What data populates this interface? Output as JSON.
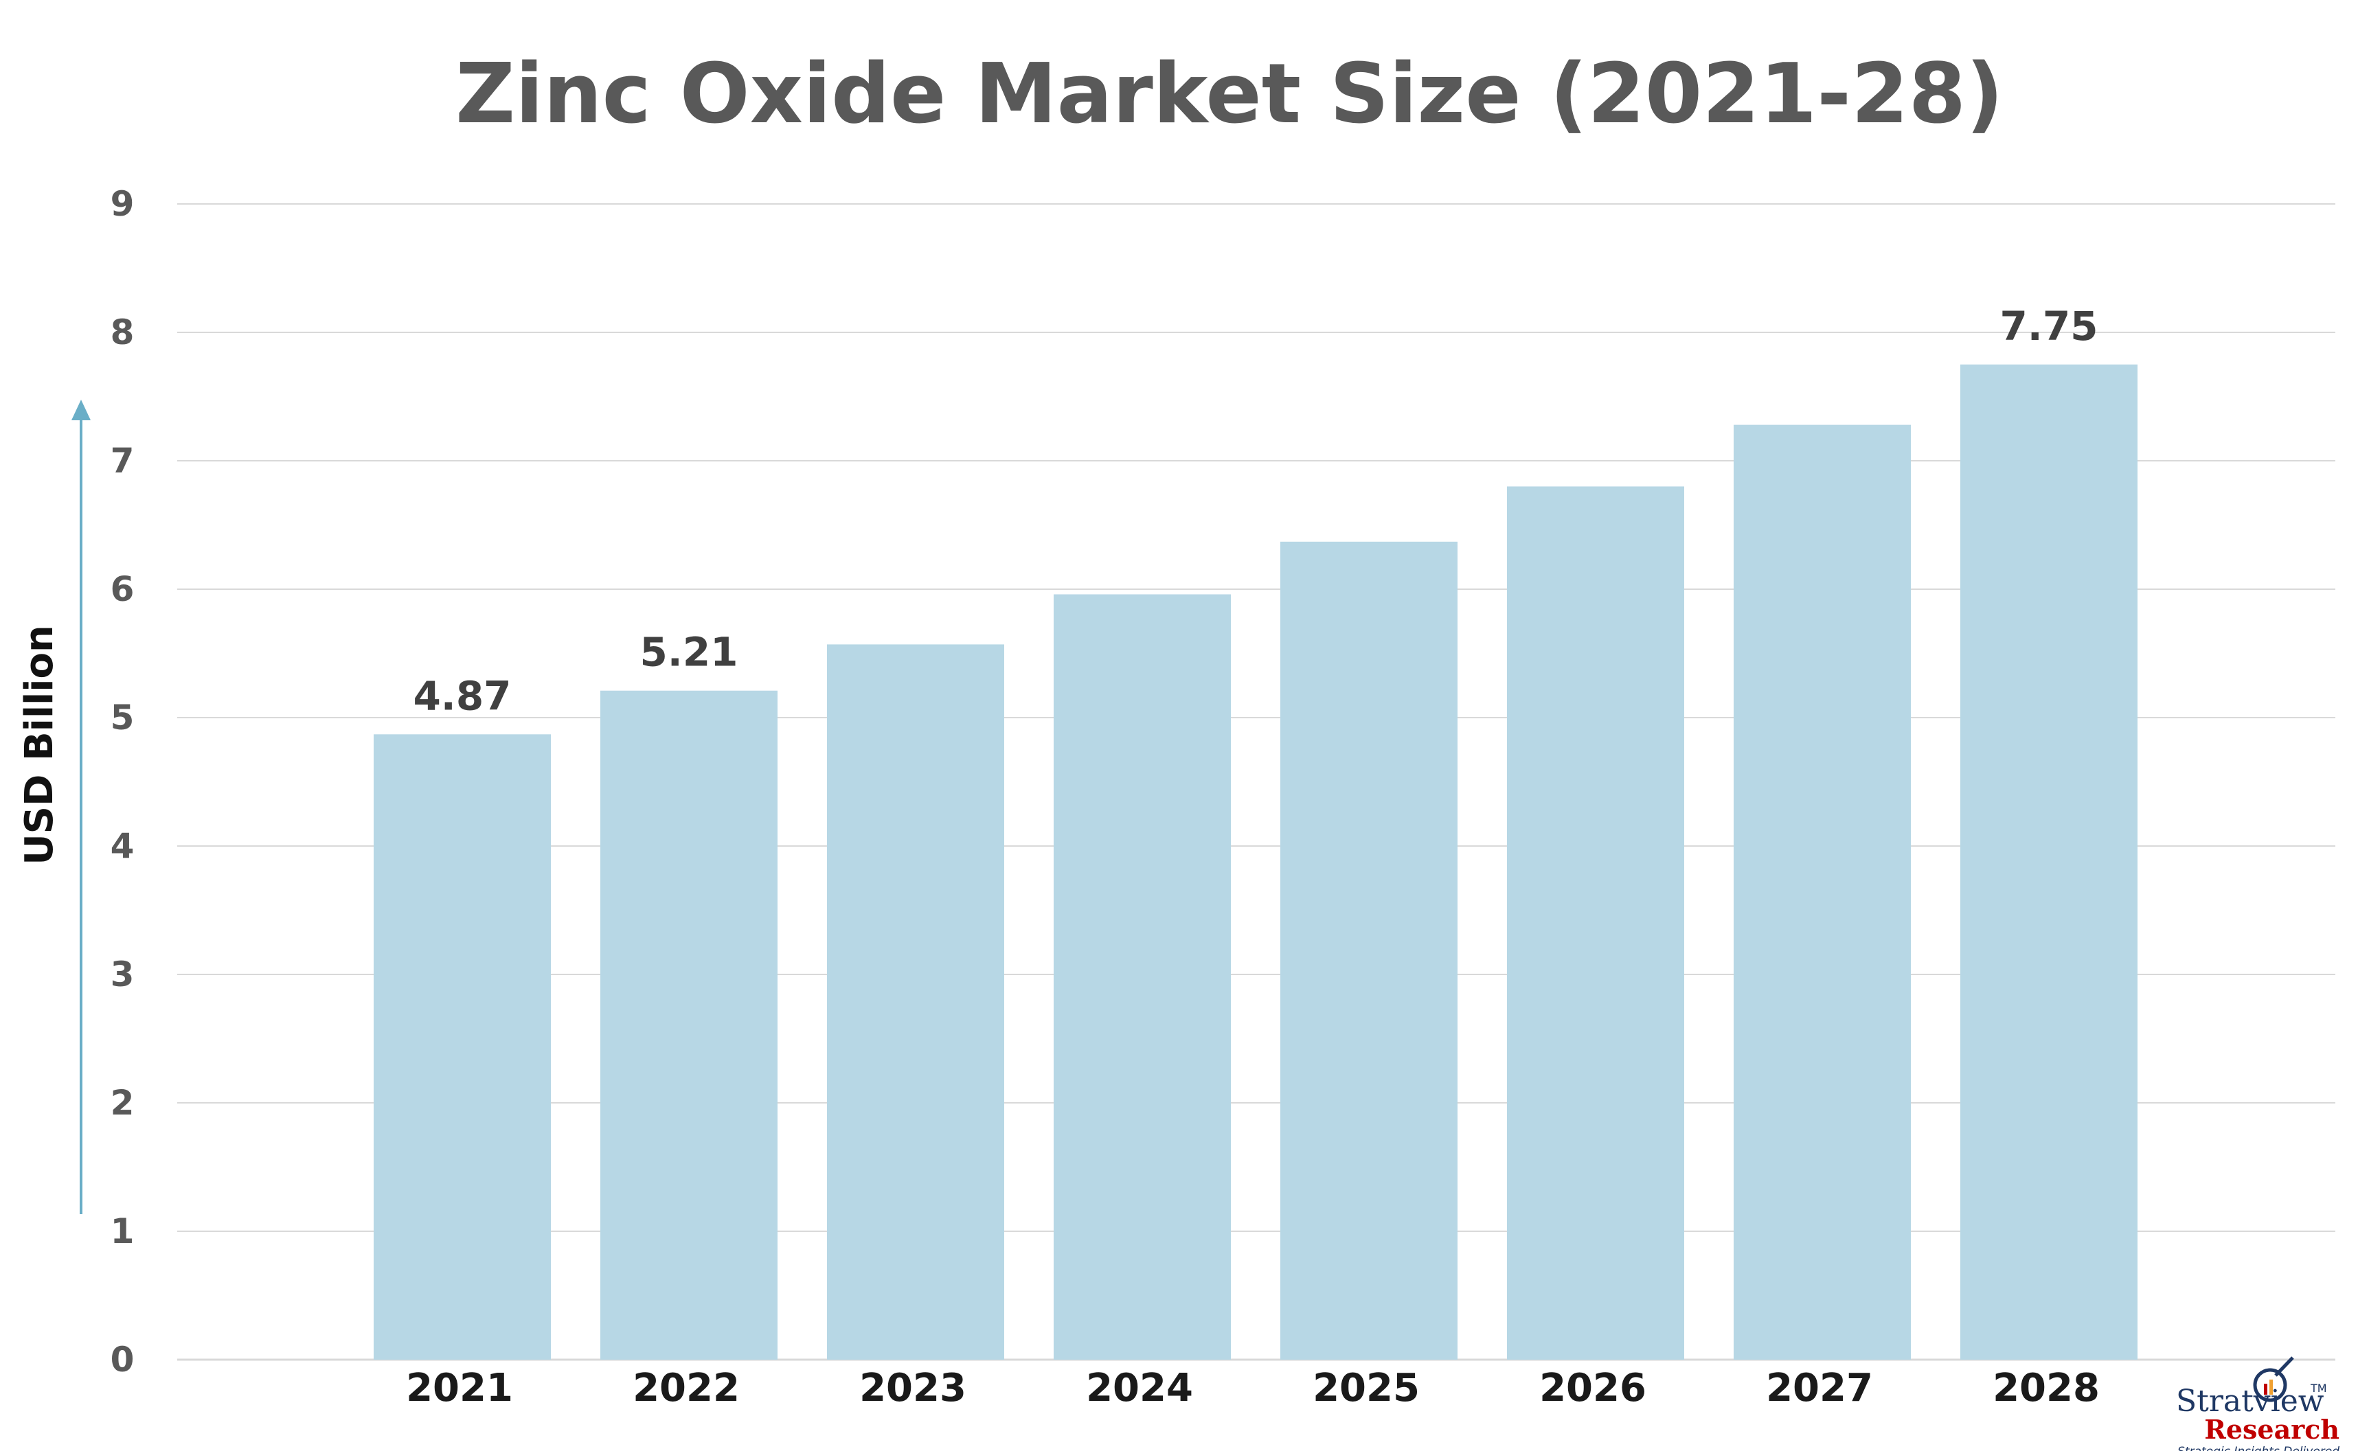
{
  "chart_data": {
    "type": "bar",
    "title": "Zinc Oxide Market Size (2021-28)",
    "ylabel": "USD Billion",
    "xlabel": "",
    "ylim": [
      0,
      9
    ],
    "yticks": [
      "0",
      "1",
      "2",
      "3",
      "4",
      "5",
      "6",
      "7",
      "8",
      "9"
    ],
    "grid": true,
    "categories": [
      "2021",
      "2022",
      "2023",
      "2024",
      "2025",
      "2026",
      "2027",
      "2028"
    ],
    "values": [
      4.87,
      5.21,
      5.57,
      5.96,
      6.37,
      6.8,
      7.28,
      7.75
    ],
    "data_labels": [
      "4.87",
      "5.21",
      "",
      "",
      "",
      "",
      "",
      "7.75"
    ],
    "bar_color": "#b7d7e5",
    "grid_color": "#d9d9d9",
    "axis_arrow_color": "#6aaec7"
  },
  "logo": {
    "name": "Stratview",
    "sub": "Research",
    "tagline": "Strategic Insights Delivered",
    "tm": "TM"
  }
}
